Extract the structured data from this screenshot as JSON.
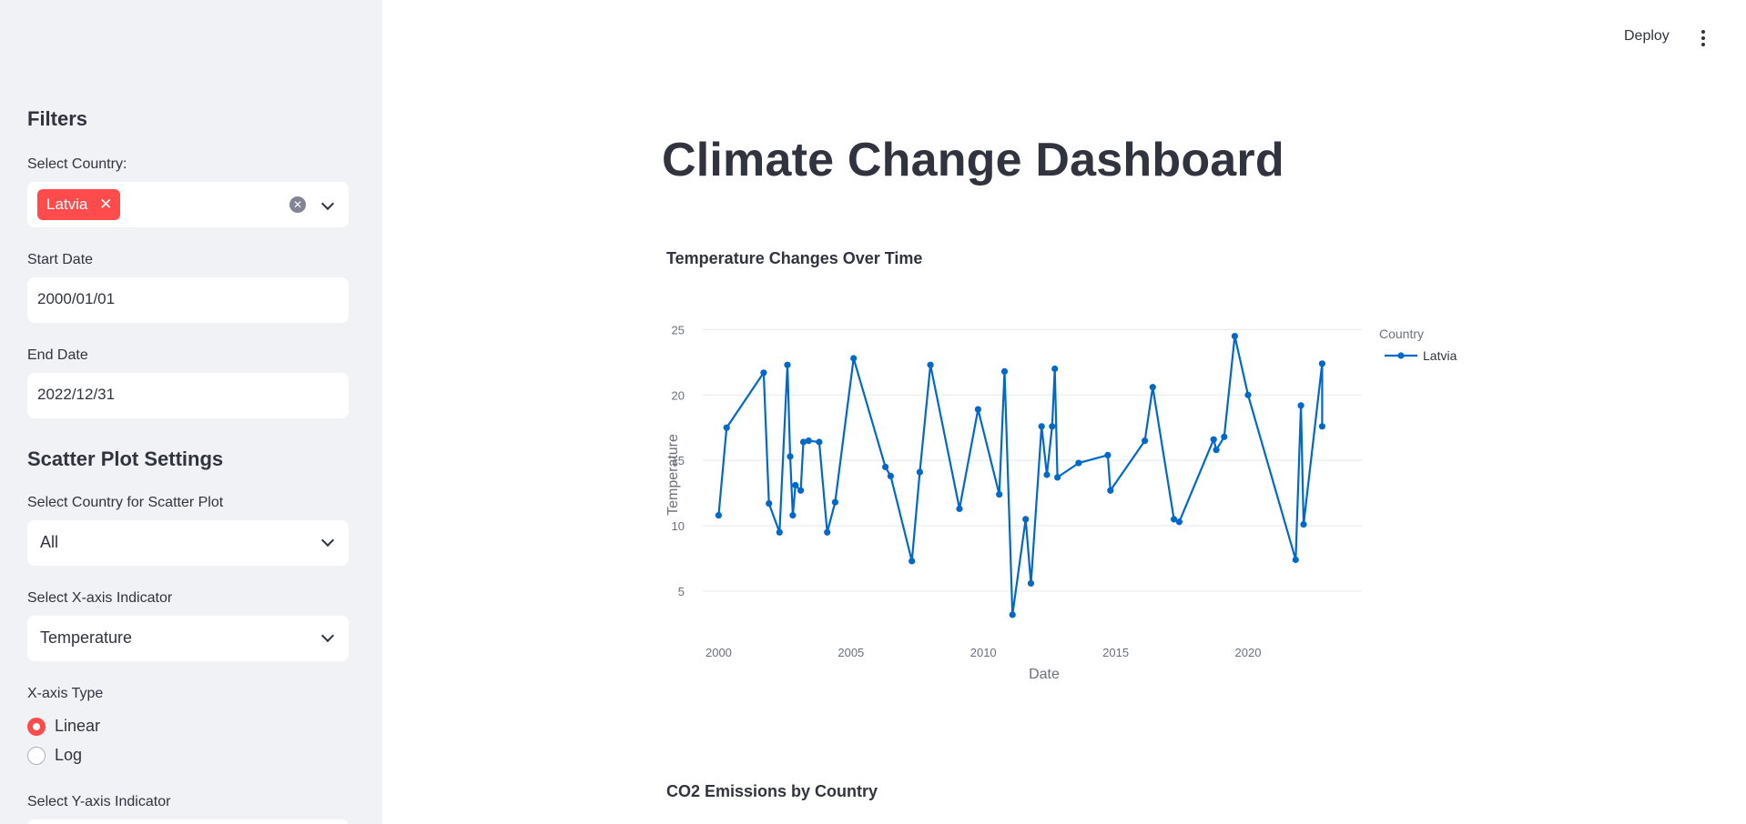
{
  "header": {
    "deploy_label": "Deploy"
  },
  "sidebar": {
    "filters_title": "Filters",
    "country_label": "Select Country:",
    "country_selected": "Latvia",
    "start_date_label": "Start Date",
    "start_date_value": "2000/01/01",
    "end_date_label": "End Date",
    "end_date_value": "2022/12/31",
    "scatter_title": "Scatter Plot Settings",
    "scatter_country_label": "Select Country for Scatter Plot",
    "scatter_country_value": "All",
    "x_indicator_label": "Select X-axis Indicator",
    "x_indicator_value": "Temperature",
    "x_type_label": "X-axis Type",
    "x_type_options": [
      "Linear",
      "Log"
    ],
    "x_type_selected": "Linear",
    "y_indicator_label": "Select Y-axis Indicator"
  },
  "main": {
    "title": "Climate Change Dashboard",
    "chart1_title": "Temperature Changes Over Time",
    "chart2_title": "CO2 Emissions by Country"
  },
  "colors": {
    "accent": "#ff4b4b",
    "line": "#0068c9",
    "sidebar_bg": "#f0f2f6"
  },
  "chart_data": {
    "type": "line",
    "xlabel": "Date",
    "ylabel": "Temperature",
    "legend_title": "Country",
    "legend_position": "top-right",
    "xlim": [
      1999.4,
      2024.3
    ],
    "ylim": [
      1.8,
      26.0
    ],
    "x_ticks": [
      2000,
      2005,
      2010,
      2015,
      2020
    ],
    "y_ticks": [
      5,
      10,
      15,
      20,
      25
    ],
    "grid": true,
    "series": [
      {
        "name": "Latvia",
        "x": [
          2000.0,
          2000.3,
          2001.7,
          2001.9,
          2002.3,
          2002.6,
          2002.7,
          2002.8,
          2002.9,
          2003.1,
          2003.2,
          2003.4,
          2003.8,
          2004.1,
          2004.4,
          2005.1,
          2006.3,
          2006.5,
          2007.3,
          2007.6,
          2008.0,
          2009.1,
          2009.8,
          2010.6,
          2010.8,
          2011.1,
          2011.6,
          2011.8,
          2012.2,
          2012.4,
          2012.6,
          2012.7,
          2012.8,
          2013.6,
          2014.7,
          2014.8,
          2016.1,
          2016.4,
          2017.2,
          2017.4,
          2018.7,
          2018.8,
          2019.1,
          2019.5,
          2020.0,
          2021.8,
          2022.0,
          2022.1,
          2022.8,
          2022.8
        ],
        "y": [
          10.8,
          17.5,
          21.7,
          11.7,
          9.5,
          22.3,
          15.3,
          10.8,
          13.1,
          12.7,
          16.4,
          16.5,
          16.4,
          9.5,
          11.8,
          22.8,
          14.5,
          13.8,
          7.3,
          14.1,
          22.3,
          11.3,
          18.9,
          12.4,
          21.8,
          3.2,
          10.5,
          5.6,
          17.6,
          13.9,
          17.6,
          22.0,
          13.7,
          14.8,
          15.4,
          12.7,
          16.5,
          20.6,
          10.5,
          10.3,
          16.6,
          15.8,
          16.8,
          24.5,
          20.0,
          7.4,
          19.2,
          10.1,
          22.4,
          17.6
        ]
      }
    ]
  }
}
